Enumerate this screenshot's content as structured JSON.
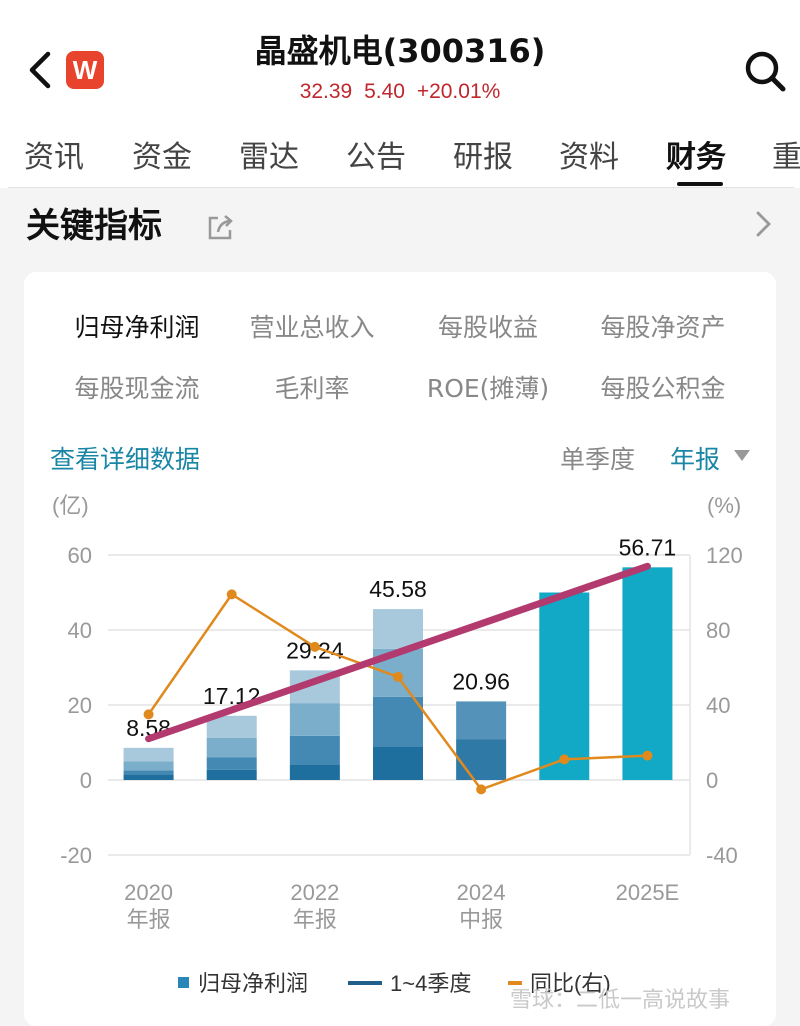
{
  "header": {
    "title": "晶盛机电(300316)",
    "price": "32.39",
    "change": "5.40",
    "change_pct": "+20.01%",
    "logo_letter": "W"
  },
  "colors": {
    "accent": "#1a86a6",
    "up": "#c0272d",
    "bar_teal": "#12a9c6",
    "line_orange": "#e08a1e",
    "trend_line": "#b23a6e"
  },
  "tabs": [
    {
      "label": "资讯"
    },
    {
      "label": "资金"
    },
    {
      "label": "雷达"
    },
    {
      "label": "公告"
    },
    {
      "label": "研报"
    },
    {
      "label": "资料"
    },
    {
      "label": "财务"
    },
    {
      "label": "重"
    }
  ],
  "active_tab": "财务",
  "section": {
    "title": "关键指标"
  },
  "metrics": [
    {
      "label": "归母净利润"
    },
    {
      "label": "营业总收入"
    },
    {
      "label": "每股收益"
    },
    {
      "label": "每股净资产"
    },
    {
      "label": "每股现金流"
    },
    {
      "label": "毛利率"
    },
    {
      "label": "ROE(摊薄)"
    },
    {
      "label": "每股公积金"
    }
  ],
  "detail_link": "查看详细数据",
  "period_quarter": "单季度",
  "period_annual": "年报",
  "watermark": "雪球：二低一高说故事",
  "chart_data": {
    "type": "bar",
    "left_unit": "(亿)",
    "right_unit": "(%)",
    "left_ticks": [
      "60",
      "40",
      "20",
      "0",
      "-20"
    ],
    "right_ticks": [
      "120",
      "80",
      "40",
      "0",
      "-40"
    ],
    "ylim_left": [
      -20,
      60
    ],
    "ylim_right": [
      -40,
      120
    ],
    "x_labels": [
      {
        "line1": "2020",
        "line2": "年报"
      },
      {
        "line1": "2022",
        "line2": "年报"
      },
      {
        "line1": "2024",
        "line2": "中报"
      },
      {
        "line1": "2025E",
        "line2": ""
      }
    ],
    "bars": [
      {
        "total": 8.58,
        "label": "8.58",
        "quarters": [
          1.5,
          2.6,
          5.0,
          8.58
        ],
        "kind": "stacked"
      },
      {
        "total": 17.12,
        "label": "17.12",
        "quarters": [
          2.7,
          6.0,
          11.2,
          17.12
        ],
        "kind": "stacked"
      },
      {
        "total": 29.24,
        "label": "29.24",
        "quarters": [
          4.2,
          11.8,
          20.5,
          29.24
        ],
        "kind": "stacked"
      },
      {
        "total": 45.58,
        "label": "45.58",
        "quarters": [
          8.8,
          22.2,
          35.0,
          45.58
        ],
        "kind": "stacked"
      },
      {
        "total": 20.96,
        "label": "20.96",
        "quarters": [
          10.8,
          20.96
        ],
        "kind": "stacked"
      },
      {
        "total": 50.0,
        "label": "",
        "quarters": [],
        "kind": "estimate"
      },
      {
        "total": 56.71,
        "label": "56.71",
        "quarters": [],
        "kind": "estimate"
      }
    ],
    "yoy_right": [
      35,
      99,
      71,
      55,
      -5,
      11,
      13
    ],
    "trend_line": {
      "from": [
        0,
        11
      ],
      "to": [
        6,
        57
      ]
    },
    "legend": [
      {
        "label": "归母净利润",
        "marker": "square"
      },
      {
        "label": "1~4季度",
        "marker": "dash"
      },
      {
        "label": "同比(右)",
        "marker": "orange-dash"
      }
    ]
  }
}
